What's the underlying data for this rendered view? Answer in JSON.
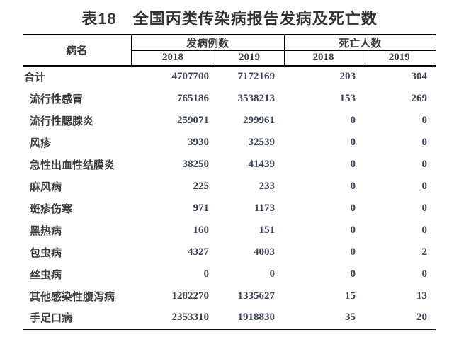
{
  "title": "表18　全国丙类传染病报告发病及死亡数",
  "table": {
    "col_disease": "病名",
    "group_incidence": "发病例数",
    "group_deaths": "死亡人数",
    "years": [
      "2018",
      "2019",
      "2018",
      "2019"
    ],
    "rows": [
      {
        "name": "合计",
        "cells": [
          "4707700",
          "7172169",
          "203",
          "304"
        ]
      },
      {
        "name": "流行性感冒",
        "cells": [
          "765186",
          "3538213",
          "153",
          "269"
        ]
      },
      {
        "name": "流行性腮腺炎",
        "cells": [
          "259071",
          "299961",
          "0",
          "0"
        ]
      },
      {
        "name": "风疹",
        "cells": [
          "3930",
          "32539",
          "0",
          "0"
        ]
      },
      {
        "name": "急性出血性结膜炎",
        "cells": [
          "38250",
          "41439",
          "0",
          "0"
        ]
      },
      {
        "name": "麻风病",
        "cells": [
          "225",
          "233",
          "0",
          "0"
        ]
      },
      {
        "name": "斑疹伤寒",
        "cells": [
          "971",
          "1173",
          "0",
          "0"
        ]
      },
      {
        "name": "黑热病",
        "cells": [
          "160",
          "151",
          "0",
          "0"
        ]
      },
      {
        "name": "包虫病",
        "cells": [
          "4327",
          "4003",
          "0",
          "2"
        ]
      },
      {
        "name": "丝虫病",
        "cells": [
          "0",
          "0",
          "0",
          "0"
        ]
      },
      {
        "name": "其他感染性腹泻病",
        "cells": [
          "1282270",
          "1335627",
          "15",
          "13"
        ]
      },
      {
        "name": "手足口病",
        "cells": [
          "2353310",
          "1918830",
          "35",
          "20"
        ]
      }
    ]
  },
  "colors": {
    "title_text": "#333333",
    "body_text": "#3a3a3a",
    "number_text": "#3b4354",
    "border": "#000000",
    "background": "#ffffff"
  }
}
